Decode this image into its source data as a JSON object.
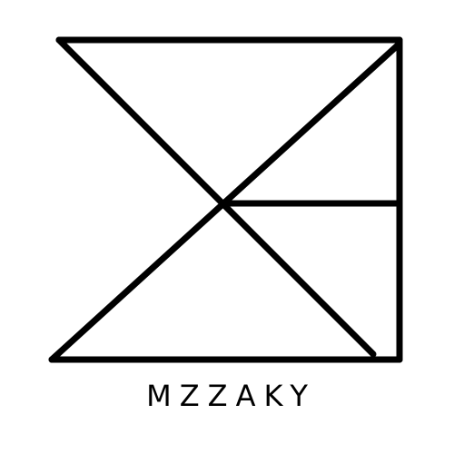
{
  "logo": {
    "brand_name": "MZZAKY",
    "icon": "geometric-monogram-logo",
    "colors": {
      "stroke": "#000000",
      "background": "#ffffff"
    }
  }
}
